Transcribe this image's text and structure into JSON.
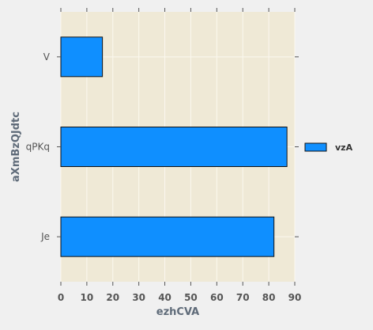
{
  "chart_data": {
    "type": "bar",
    "orientation": "horizontal",
    "categories": [
      "Je",
      "qPKq",
      "V"
    ],
    "series": [
      {
        "name": "vzA",
        "values": [
          82,
          87,
          16
        ],
        "color": "#0f8fff"
      }
    ],
    "xlabel": "ezhCVA",
    "ylabel": "aXmBzQJdtc",
    "xlim": [
      0,
      90
    ],
    "xticks": [
      0,
      10,
      20,
      30,
      40,
      50,
      60,
      70,
      80,
      90
    ],
    "grid": true,
    "legend_position": "right",
    "colors": {
      "plot_background": "#efe9d6",
      "figure_background": "#f0f0f0",
      "grid": "#fbf8ef",
      "bar_edge": "#111111",
      "tick_text": "#555555",
      "axis_label": "#5f6b79"
    }
  }
}
